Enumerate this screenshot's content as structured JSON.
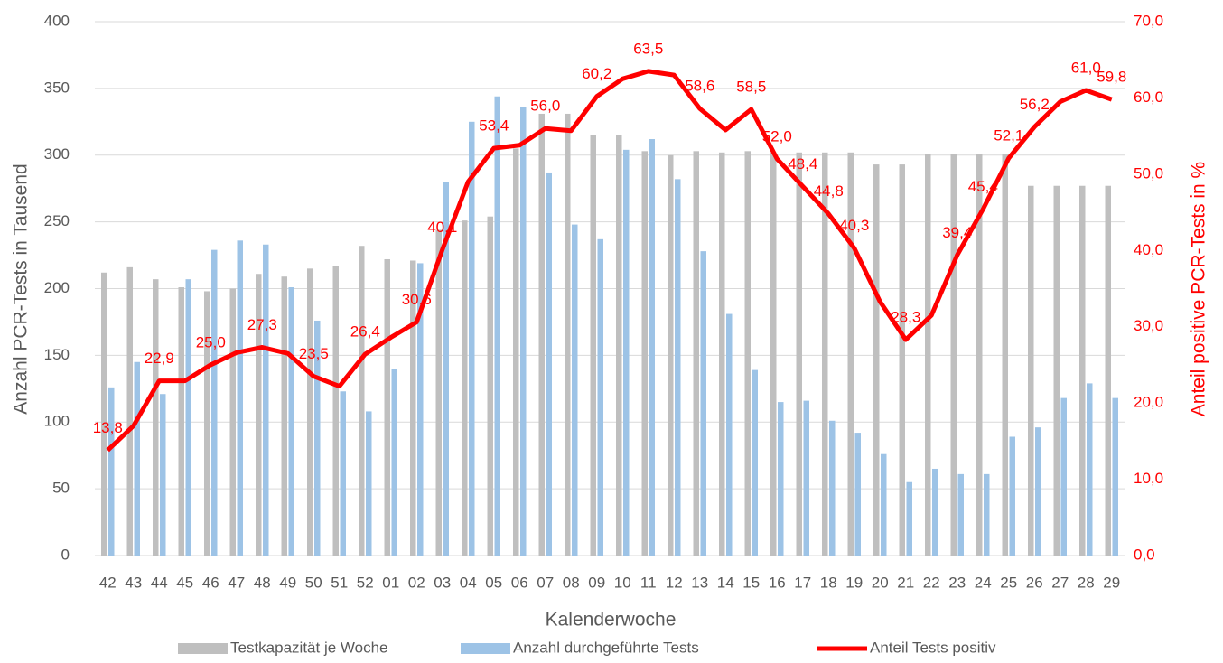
{
  "chart_data": {
    "type": "combo",
    "y_label": "Anzahl PCR-Tests in Tausend",
    "y2_label": "Anteil positive PCR-Tests in %",
    "x_label": "Kalenderwoche",
    "categories": [
      "42",
      "43",
      "44",
      "45",
      "46",
      "47",
      "48",
      "49",
      "50",
      "51",
      "52",
      "01",
      "02",
      "03",
      "04",
      "05",
      "06",
      "07",
      "08",
      "09",
      "10",
      "11",
      "12",
      "13",
      "14",
      "15",
      "16",
      "17",
      "18",
      "19",
      "20",
      "21",
      "22",
      "23",
      "24",
      "25",
      "26",
      "27",
      "28",
      "29"
    ],
    "series": [
      {
        "name": "Testkapazität je Woche",
        "type": "bar",
        "color": "#bfbfbf",
        "values": [
          212,
          216,
          207,
          201,
          198,
          200,
          211,
          209,
          215,
          217,
          232,
          222,
          221,
          244,
          251,
          254,
          305,
          331,
          331,
          315,
          315,
          303,
          300,
          303,
          302,
          303,
          302,
          302,
          302,
          302,
          293,
          293,
          301,
          301,
          301,
          301,
          277,
          277,
          277,
          277
        ]
      },
      {
        "name": "Anzahl durchgeführte Tests",
        "type": "bar",
        "color": "#9dc3e6",
        "values": [
          126,
          145,
          121,
          207,
          229,
          236,
          233,
          201,
          176,
          123,
          108,
          140,
          219,
          280,
          325,
          344,
          336,
          287,
          248,
          237,
          304,
          312,
          282,
          228,
          181,
          139,
          115,
          116,
          101,
          92,
          76,
          55,
          65,
          61,
          61,
          89,
          96,
          118,
          129,
          118
        ]
      },
      {
        "name": "Anteil Tests positiv",
        "type": "line",
        "axis": "y2",
        "color": "#ff0000",
        "values": [
          13.8,
          17.0,
          22.9,
          22.9,
          25.0,
          26.6,
          27.3,
          26.5,
          23.5,
          22.2,
          26.4,
          28.6,
          30.6,
          40.1,
          49.0,
          53.4,
          53.8,
          56.0,
          55.7,
          60.2,
          62.5,
          63.5,
          63.0,
          58.6,
          55.8,
          58.5,
          52.0,
          48.4,
          44.8,
          40.3,
          33.3,
          28.3,
          31.5,
          39.4,
          45.4,
          52.1,
          56.2,
          59.5,
          61.0,
          59.8
        ],
        "value_labels": [
          "13,8",
          null,
          "22,9",
          null,
          "25,0",
          null,
          "27,3",
          null,
          "23,5",
          null,
          "26,4",
          null,
          "30,6",
          "40,1",
          null,
          "53,4",
          null,
          "56,0",
          null,
          "60,2",
          null,
          "63,5",
          null,
          "58,6",
          null,
          "58,5",
          "52,0",
          "48,4",
          "44,8",
          "40,3",
          null,
          "28,3",
          null,
          "39,4",
          "45,4",
          "52,1",
          "56,2",
          null,
          "61,0",
          "59,8"
        ]
      }
    ],
    "ylim": [
      0,
      400
    ],
    "yticks": [
      0,
      50,
      100,
      150,
      200,
      250,
      300,
      350,
      400
    ],
    "y2lim": [
      0,
      70
    ],
    "y2ticks": [
      {
        "value": 0,
        "label": "0,0"
      },
      {
        "value": 10,
        "label": "10,0"
      },
      {
        "value": 20,
        "label": "20,0"
      },
      {
        "value": 30,
        "label": "30,0"
      },
      {
        "value": 40,
        "label": "40,0"
      },
      {
        "value": 50,
        "label": "50,0"
      },
      {
        "value": 60,
        "label": "60,0"
      },
      {
        "value": 70,
        "label": "70,0"
      }
    ],
    "grid": true,
    "legend": "bottom"
  }
}
